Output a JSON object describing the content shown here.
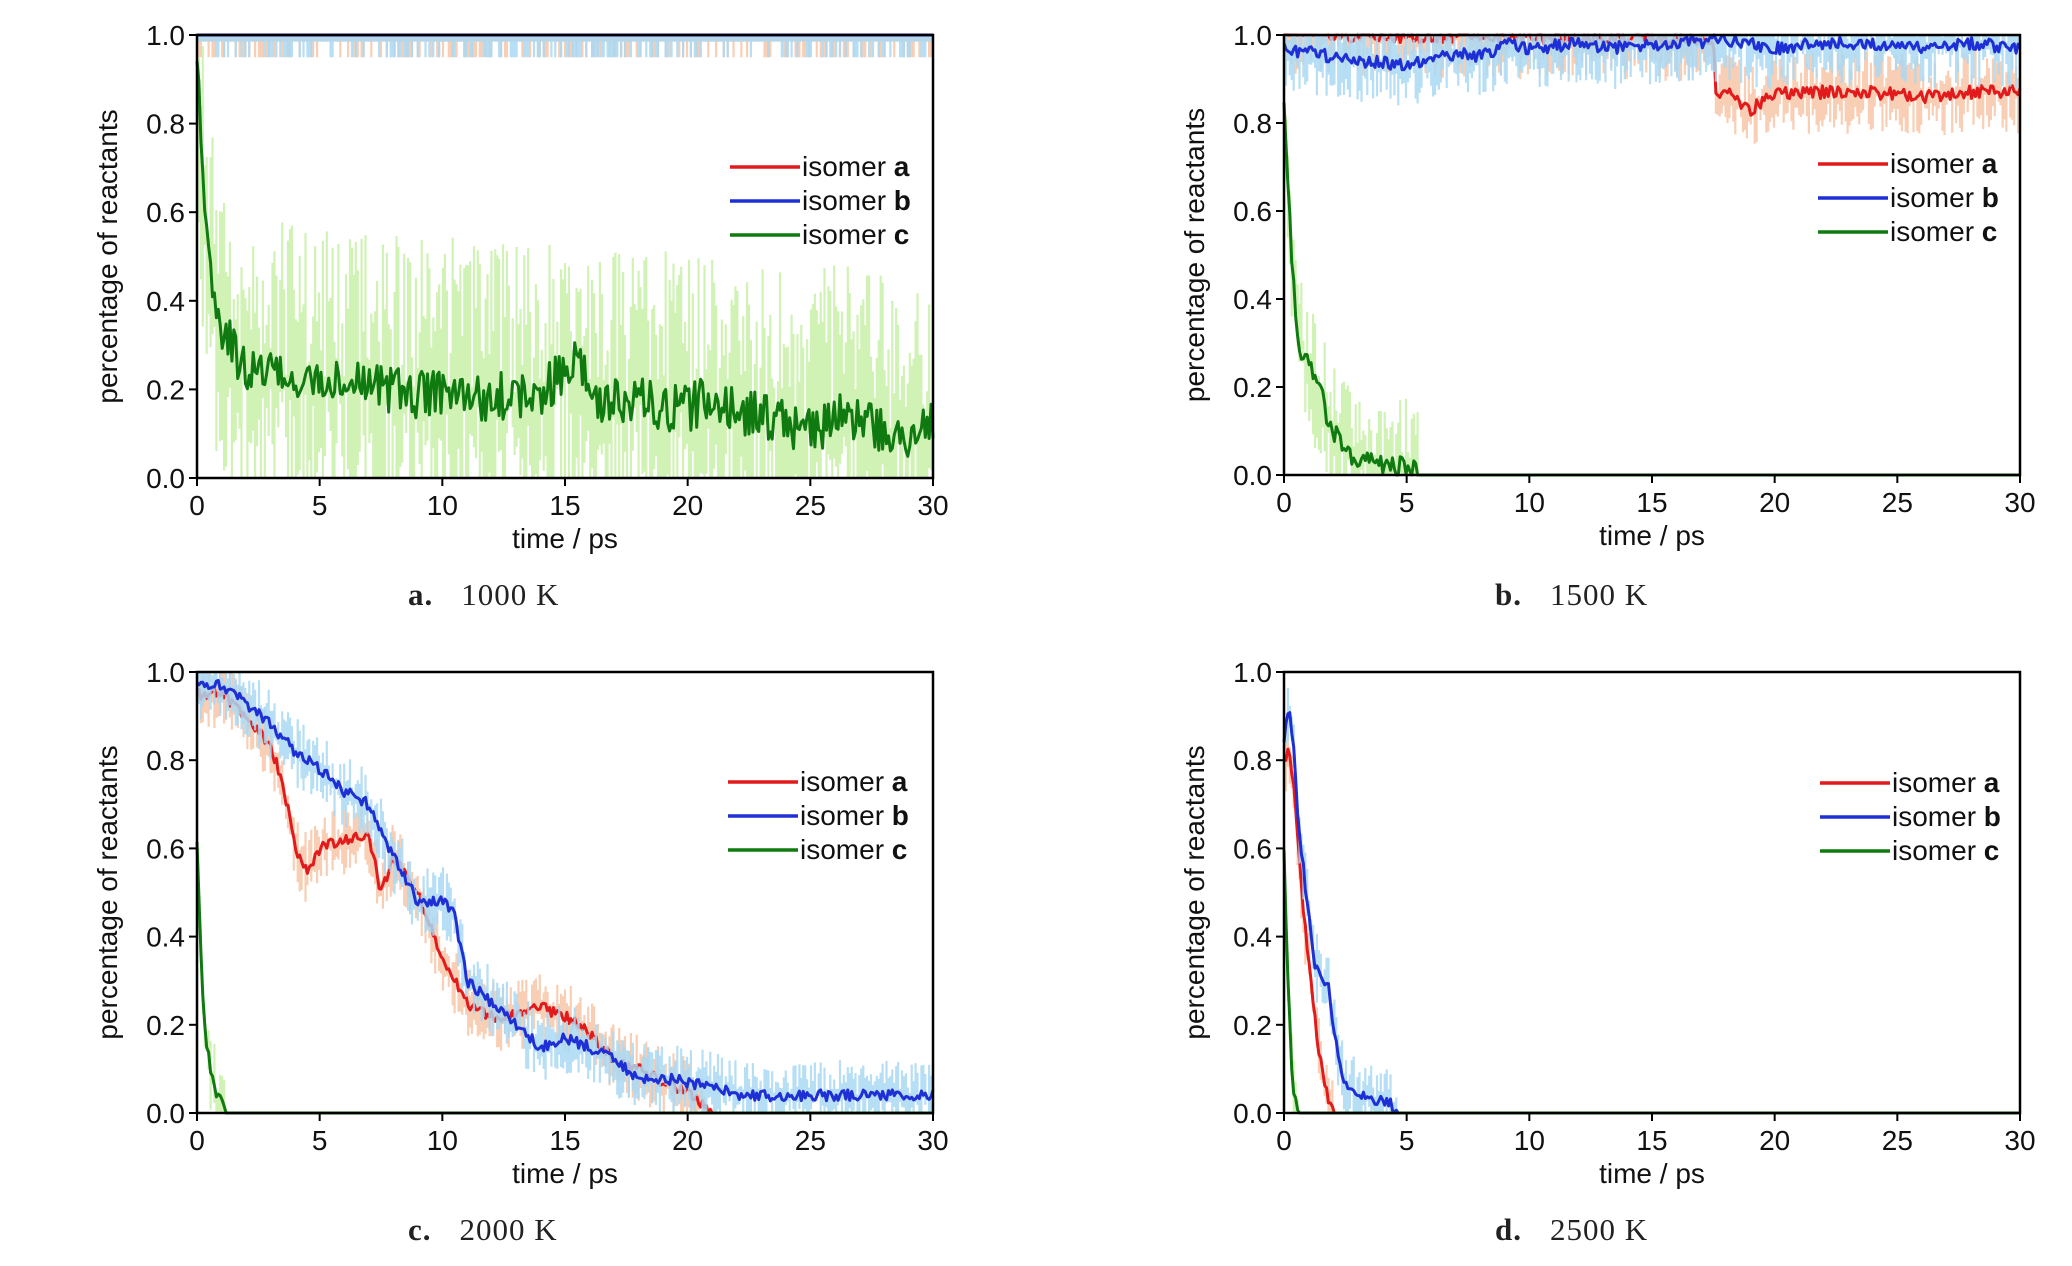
{
  "figure": {
    "panels": [
      {
        "letter": "a.",
        "temperature": "1000 K"
      },
      {
        "letter": "b.",
        "temperature": "1500 K"
      },
      {
        "letter": "c.",
        "temperature": "2000 K"
      },
      {
        "letter": "d.",
        "temperature": "2500 K"
      }
    ]
  },
  "chart_data": [
    {
      "type": "line",
      "panel": "a",
      "title": "1000 K",
      "xlabel": "time / ps",
      "ylabel": "percentage of reactants",
      "xlim": [
        0,
        30
      ],
      "ylim": [
        0,
        1
      ],
      "xticks": [
        0,
        5,
        10,
        15,
        20,
        25,
        30
      ],
      "yticks": [
        "0.0",
        "0.2",
        "0.4",
        "0.6",
        "0.8",
        "1.0"
      ],
      "legend_position": "right",
      "series": [
        {
          "name": "isomer a",
          "color": "#e31a1c",
          "band_color": "#f7c6a8",
          "x": [
            0,
            30
          ],
          "y": [
            1.0,
            1.0
          ],
          "band_low": 0.95
        },
        {
          "name": "isomer b",
          "color": "#1f2fd6",
          "band_color": "#a9d8f2",
          "x": [
            0,
            30
          ],
          "y": [
            1.0,
            1.0
          ],
          "band_low": 0.95
        },
        {
          "name": "isomer c",
          "color": "#0f7a0f",
          "band_color": "#c8f0a8",
          "x": [
            0,
            0.3,
            0.6,
            1,
            1.5,
            2,
            3,
            4,
            5,
            6,
            7,
            8,
            9,
            10,
            11,
            12,
            13,
            14,
            15,
            15.5,
            16,
            17,
            18,
            19,
            20,
            21,
            22,
            23,
            24,
            25,
            26,
            27,
            28,
            29,
            30
          ],
          "y": [
            0.95,
            0.6,
            0.45,
            0.35,
            0.28,
            0.25,
            0.24,
            0.22,
            0.22,
            0.21,
            0.2,
            0.2,
            0.19,
            0.2,
            0.18,
            0.18,
            0.19,
            0.18,
            0.25,
            0.3,
            0.18,
            0.17,
            0.17,
            0.16,
            0.16,
            0.18,
            0.15,
            0.14,
            0.13,
            0.1,
            0.14,
            0.12,
            0.11,
            0.1,
            0.12
          ],
          "band_halfwidth": 0.22
        }
      ]
    },
    {
      "type": "line",
      "panel": "b",
      "title": "1500 K",
      "xlabel": "time / ps",
      "ylabel": "percentage of reactants",
      "xlim": [
        0,
        30
      ],
      "ylim": [
        0,
        1
      ],
      "xticks": [
        0,
        5,
        10,
        15,
        20,
        25,
        30
      ],
      "yticks": [
        "0.0",
        "0.2",
        "0.4",
        "0.6",
        "0.8",
        "1.0"
      ],
      "legend_position": "right",
      "series": [
        {
          "name": "isomer a",
          "color": "#e31a1c",
          "band_color": "#f7c6a8",
          "x": [
            0,
            17.5,
            17.6,
            18,
            19,
            20,
            22,
            24,
            26,
            28,
            30
          ],
          "y": [
            1.0,
            0.99,
            0.86,
            0.87,
            0.83,
            0.87,
            0.87,
            0.87,
            0.86,
            0.87,
            0.87
          ],
          "band_halfwidth": 0.06
        },
        {
          "name": "isomer b",
          "color": "#1f2fd6",
          "band_color": "#a9d8f2",
          "x": [
            0,
            1,
            2,
            3,
            4,
            5,
            6,
            7,
            8,
            9,
            10,
            12,
            14,
            16,
            18,
            20,
            22,
            24,
            26,
            28,
            30
          ],
          "y": [
            0.97,
            0.96,
            0.95,
            0.94,
            0.94,
            0.93,
            0.94,
            0.96,
            0.95,
            0.98,
            0.97,
            0.98,
            0.97,
            0.98,
            0.99,
            0.97,
            0.98,
            0.98,
            0.97,
            0.98,
            0.97
          ],
          "band_halfwidth": 0.06
        },
        {
          "name": "isomer c",
          "color": "#0f7a0f",
          "band_color": "#c8f0a8",
          "x": [
            0,
            0.3,
            0.6,
            1,
            1.5,
            2,
            2.5,
            3,
            3.5,
            4,
            5,
            5.5,
            6,
            30
          ],
          "y": [
            0.85,
            0.5,
            0.3,
            0.25,
            0.18,
            0.1,
            0.05,
            0.04,
            0.03,
            0.02,
            0.02,
            0.0,
            0.0,
            0.0
          ],
          "band_halfwidth": 0.1
        }
      ]
    },
    {
      "type": "line",
      "panel": "c",
      "title": "2000 K",
      "xlabel": "time / ps",
      "ylabel": "percentage of reactants",
      "xlim": [
        0,
        30
      ],
      "ylim": [
        0,
        1
      ],
      "xticks": [
        0,
        5,
        10,
        15,
        20,
        25,
        30
      ],
      "yticks": [
        "0.0",
        "0.2",
        "0.4",
        "0.6",
        "0.8",
        "1.0"
      ],
      "legend_position": "right",
      "series": [
        {
          "name": "isomer a",
          "color": "#e31a1c",
          "band_color": "#f7c6a8",
          "x": [
            0,
            1,
            2,
            3,
            3.5,
            4,
            4.5,
            5,
            6,
            7,
            7.5,
            8,
            9,
            10,
            11,
            12,
            13,
            14,
            15,
            16,
            17,
            18,
            19,
            20,
            20.5,
            21,
            30
          ],
          "y": [
            0.95,
            0.95,
            0.9,
            0.83,
            0.75,
            0.6,
            0.55,
            0.6,
            0.62,
            0.63,
            0.5,
            0.58,
            0.5,
            0.35,
            0.25,
            0.22,
            0.22,
            0.24,
            0.22,
            0.18,
            0.12,
            0.1,
            0.07,
            0.05,
            0.02,
            0.0,
            0.0
          ],
          "band_halfwidth": 0.05
        },
        {
          "name": "isomer b",
          "color": "#1f2fd6",
          "band_color": "#a9d8f2",
          "x": [
            0,
            1,
            2,
            3,
            4,
            5,
            6,
            7,
            8,
            9,
            10,
            10.5,
            11,
            12,
            13,
            14,
            15,
            16,
            17,
            18,
            19,
            20,
            21,
            22,
            23,
            24,
            25,
            26,
            27,
            28,
            29,
            30
          ],
          "y": [
            0.97,
            0.97,
            0.93,
            0.88,
            0.82,
            0.78,
            0.73,
            0.7,
            0.58,
            0.48,
            0.48,
            0.45,
            0.3,
            0.25,
            0.2,
            0.15,
            0.17,
            0.15,
            0.12,
            0.08,
            0.08,
            0.07,
            0.06,
            0.04,
            0.04,
            0.04,
            0.04,
            0.04,
            0.04,
            0.04,
            0.04,
            0.04
          ],
          "band_halfwidth": 0.05
        },
        {
          "name": "isomer c",
          "color": "#0f7a0f",
          "band_color": "#c8f0a8",
          "x": [
            0,
            0.2,
            0.4,
            0.6,
            0.9,
            1.2,
            30
          ],
          "y": [
            0.6,
            0.3,
            0.15,
            0.08,
            0.03,
            0.0,
            0.0
          ],
          "band_halfwidth": 0.06
        }
      ]
    },
    {
      "type": "line",
      "panel": "d",
      "title": "2500 K",
      "xlabel": "time / ps",
      "ylabel": "percentage of reactants",
      "xlim": [
        0,
        30
      ],
      "ylim": [
        0,
        1
      ],
      "xticks": [
        0,
        5,
        10,
        15,
        20,
        25,
        30
      ],
      "yticks": [
        "0.0",
        "0.2",
        "0.4",
        "0.6",
        "0.8",
        "1.0"
      ],
      "legend_position": "right",
      "series": [
        {
          "name": "isomer a",
          "color": "#e31a1c",
          "band_color": "#f7c6a8",
          "x": [
            0,
            0.2,
            0.4,
            0.6,
            0.8,
            1.0,
            1.2,
            1.4,
            1.6,
            1.8,
            2.0,
            30
          ],
          "y": [
            0.8,
            0.82,
            0.75,
            0.6,
            0.45,
            0.35,
            0.25,
            0.15,
            0.08,
            0.03,
            0.0,
            0.0
          ],
          "band_halfwidth": 0.05
        },
        {
          "name": "isomer b",
          "color": "#1f2fd6",
          "band_color": "#a9d8f2",
          "x": [
            0,
            0.2,
            0.4,
            0.6,
            0.8,
            1.0,
            1.2,
            1.5,
            1.8,
            2.0,
            2.3,
            2.6,
            3.0,
            3.5,
            4.0,
            4.4,
            4.6,
            30
          ],
          "y": [
            0.85,
            0.92,
            0.82,
            0.65,
            0.55,
            0.45,
            0.35,
            0.3,
            0.3,
            0.2,
            0.1,
            0.06,
            0.04,
            0.03,
            0.03,
            0.02,
            0.0,
            0.0
          ],
          "band_halfwidth": 0.05
        },
        {
          "name": "isomer c",
          "color": "#0f7a0f",
          "band_color": "#c8f0a8",
          "x": [
            0,
            0.1,
            0.2,
            0.3,
            0.4,
            0.6,
            30
          ],
          "y": [
            0.6,
            0.4,
            0.25,
            0.12,
            0.05,
            0.0,
            0.0
          ],
          "band_halfwidth": 0.05
        }
      ]
    }
  ]
}
